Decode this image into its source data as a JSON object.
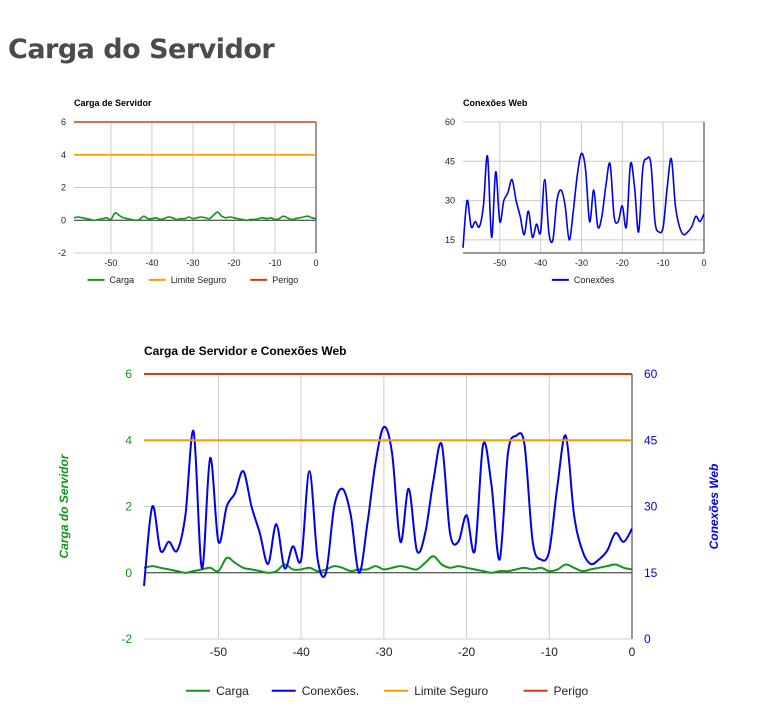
{
  "page": {
    "title": "Carga do Servidor"
  },
  "colors": {
    "carga": "#109618",
    "conexoes": "#0000ee",
    "limite": "#ff9900",
    "perigo": "#dc3912",
    "grid": "#cccccc",
    "baseline": "#333333"
  },
  "chart_data": [
    {
      "id": "load",
      "type": "line",
      "title": "Carga de Servidor",
      "xlim": [
        -59,
        0
      ],
      "ylim": [
        -2,
        6
      ],
      "xticks": [
        -50,
        -40,
        -30,
        -20,
        -10,
        0
      ],
      "yticks": [
        -2,
        0,
        2,
        4,
        6
      ],
      "legend": "bottom",
      "series": [
        {
          "name": "Carga",
          "color": "#109618",
          "x": [
            -59,
            -58,
            -57,
            -56,
            -55,
            -54,
            -53,
            -52,
            -51,
            -50,
            -49,
            -48,
            -47,
            -46,
            -45,
            -44,
            -43,
            -42,
            -41,
            -40,
            -39,
            -38,
            -37,
            -36,
            -35,
            -34,
            -33,
            -32,
            -31,
            -30,
            -29,
            -28,
            -27,
            -26,
            -25,
            -24,
            -23,
            -22,
            -21,
            -20,
            -19,
            -18,
            -17,
            -16,
            -15,
            -14,
            -13,
            -12,
            -11,
            -10,
            -9,
            -8,
            -7,
            -6,
            -5,
            -4,
            -3,
            -2,
            -1,
            0
          ],
          "y": [
            0.15,
            0.2,
            0.15,
            0.1,
            0.05,
            0.0,
            0.05,
            0.1,
            0.15,
            0.05,
            0.45,
            0.3,
            0.15,
            0.1,
            0.05,
            0.0,
            0.05,
            0.25,
            0.1,
            0.1,
            0.15,
            0.05,
            0.1,
            0.2,
            0.15,
            0.05,
            0.1,
            0.1,
            0.2,
            0.1,
            0.15,
            0.2,
            0.15,
            0.1,
            0.3,
            0.5,
            0.25,
            0.15,
            0.2,
            0.15,
            0.1,
            0.05,
            0.0,
            0.05,
            0.05,
            0.1,
            0.15,
            0.1,
            0.15,
            0.05,
            0.1,
            0.25,
            0.15,
            0.05,
            0.1,
            0.15,
            0.2,
            0.25,
            0.15,
            0.1
          ]
        },
        {
          "name": "Limite Seguro",
          "color": "#ff9900",
          "x": [
            -59,
            0
          ],
          "y": [
            4,
            4
          ]
        },
        {
          "name": "Perigo",
          "color": "#dc3912",
          "x": [
            -59,
            0
          ],
          "y": [
            6,
            6
          ]
        }
      ]
    },
    {
      "id": "web",
      "type": "line",
      "title": "Conexões Web",
      "xlim": [
        -59,
        0
      ],
      "ylim": [
        10,
        60
      ],
      "xticks": [
        -50,
        -40,
        -30,
        -20,
        -10,
        0
      ],
      "yticks": [
        15,
        30,
        45,
        60
      ],
      "legend": "bottom",
      "series": [
        {
          "name": "Conexões",
          "color": "#0000ee",
          "x": [
            -59,
            -58,
            -57,
            -56,
            -55,
            -54,
            -53,
            -52,
            -51,
            -50,
            -49,
            -48,
            -47,
            -46,
            -45,
            -44,
            -43,
            -42,
            -41,
            -40,
            -39,
            -38,
            -37,
            -36,
            -35,
            -34,
            -33,
            -32,
            -31,
            -30,
            -29,
            -28,
            -27,
            -26,
            -25,
            -24,
            -23,
            -22,
            -21,
            -20,
            -19,
            -18,
            -17,
            -16,
            -15,
            -14,
            -13,
            -12,
            -11,
            -10,
            -9,
            -8,
            -7,
            -6,
            -5,
            -4,
            -3,
            -2,
            -1,
            0
          ],
          "y": [
            12,
            30,
            20,
            22,
            20,
            28,
            47,
            16,
            41,
            22,
            30,
            33,
            38,
            30,
            24,
            17,
            26,
            16,
            21,
            18,
            38,
            18,
            15,
            30,
            34,
            28,
            15,
            26,
            40,
            48,
            42,
            22,
            34,
            20,
            24,
            36,
            44,
            24,
            22,
            28,
            20,
            44,
            35,
            18,
            42,
            46,
            44,
            22,
            18,
            20,
            35,
            46,
            28,
            20,
            17,
            18,
            20,
            24,
            22,
            25
          ]
        }
      ]
    },
    {
      "id": "combined",
      "type": "line",
      "title": "Carga de Servidor e Conexões Web",
      "xlim": [
        -59,
        0
      ],
      "xticks": [
        -50,
        -40,
        -30,
        -20,
        -10,
        0
      ],
      "y_left": {
        "label": "Carga do Servidor",
        "ylim": [
          -2,
          6
        ],
        "ticks": [
          -2,
          0,
          2,
          4,
          6
        ]
      },
      "y_right": {
        "label": "Conexões Web",
        "ylim": [
          0,
          60
        ],
        "ticks": [
          0,
          15,
          30,
          45,
          60
        ]
      },
      "legend": "bottom",
      "series": [
        {
          "name": "Carga",
          "color": "#109618",
          "axis": "left",
          "x": [
            -59,
            -58,
            -57,
            -56,
            -55,
            -54,
            -53,
            -52,
            -51,
            -50,
            -49,
            -48,
            -47,
            -46,
            -45,
            -44,
            -43,
            -42,
            -41,
            -40,
            -39,
            -38,
            -37,
            -36,
            -35,
            -34,
            -33,
            -32,
            -31,
            -30,
            -29,
            -28,
            -27,
            -26,
            -25,
            -24,
            -23,
            -22,
            -21,
            -20,
            -19,
            -18,
            -17,
            -16,
            -15,
            -14,
            -13,
            -12,
            -11,
            -10,
            -9,
            -8,
            -7,
            -6,
            -5,
            -4,
            -3,
            -2,
            -1,
            0
          ],
          "y": [
            0.15,
            0.2,
            0.15,
            0.1,
            0.05,
            0.0,
            0.05,
            0.1,
            0.15,
            0.05,
            0.45,
            0.3,
            0.15,
            0.1,
            0.05,
            0.0,
            0.05,
            0.25,
            0.1,
            0.1,
            0.15,
            0.05,
            0.1,
            0.2,
            0.15,
            0.05,
            0.1,
            0.1,
            0.2,
            0.1,
            0.15,
            0.2,
            0.15,
            0.1,
            0.3,
            0.5,
            0.25,
            0.15,
            0.2,
            0.15,
            0.1,
            0.05,
            0.0,
            0.05,
            0.05,
            0.1,
            0.15,
            0.1,
            0.15,
            0.05,
            0.1,
            0.25,
            0.15,
            0.05,
            0.1,
            0.15,
            0.2,
            0.25,
            0.15,
            0.1
          ]
        },
        {
          "name": "Conexões.",
          "color": "#0000ee",
          "axis": "right",
          "x": [
            -59,
            -58,
            -57,
            -56,
            -55,
            -54,
            -53,
            -52,
            -51,
            -50,
            -49,
            -48,
            -47,
            -46,
            -45,
            -44,
            -43,
            -42,
            -41,
            -40,
            -39,
            -38,
            -37,
            -36,
            -35,
            -34,
            -33,
            -32,
            -31,
            -30,
            -29,
            -28,
            -27,
            -26,
            -25,
            -24,
            -23,
            -22,
            -21,
            -20,
            -19,
            -18,
            -17,
            -16,
            -15,
            -14,
            -13,
            -12,
            -11,
            -10,
            -9,
            -8,
            -7,
            -6,
            -5,
            -4,
            -3,
            -2,
            -1,
            0
          ],
          "y": [
            12,
            30,
            20,
            22,
            20,
            28,
            47,
            16,
            41,
            22,
            30,
            33,
            38,
            30,
            24,
            17,
            26,
            16,
            21,
            18,
            38,
            18,
            15,
            30,
            34,
            28,
            15,
            26,
            40,
            48,
            42,
            22,
            34,
            20,
            24,
            36,
            44,
            24,
            22,
            28,
            20,
            44,
            35,
            18,
            42,
            46,
            44,
            22,
            18,
            20,
            35,
            46,
            28,
            20,
            17,
            18,
            20,
            24,
            22,
            25
          ]
        },
        {
          "name": "Limite Seguro",
          "color": "#ff9900",
          "axis": "left",
          "x": [
            -59,
            0
          ],
          "y": [
            4,
            4
          ]
        },
        {
          "name": "Perigo",
          "color": "#dc3912",
          "axis": "left",
          "x": [
            -59,
            0
          ],
          "y": [
            6,
            6
          ]
        }
      ]
    }
  ]
}
